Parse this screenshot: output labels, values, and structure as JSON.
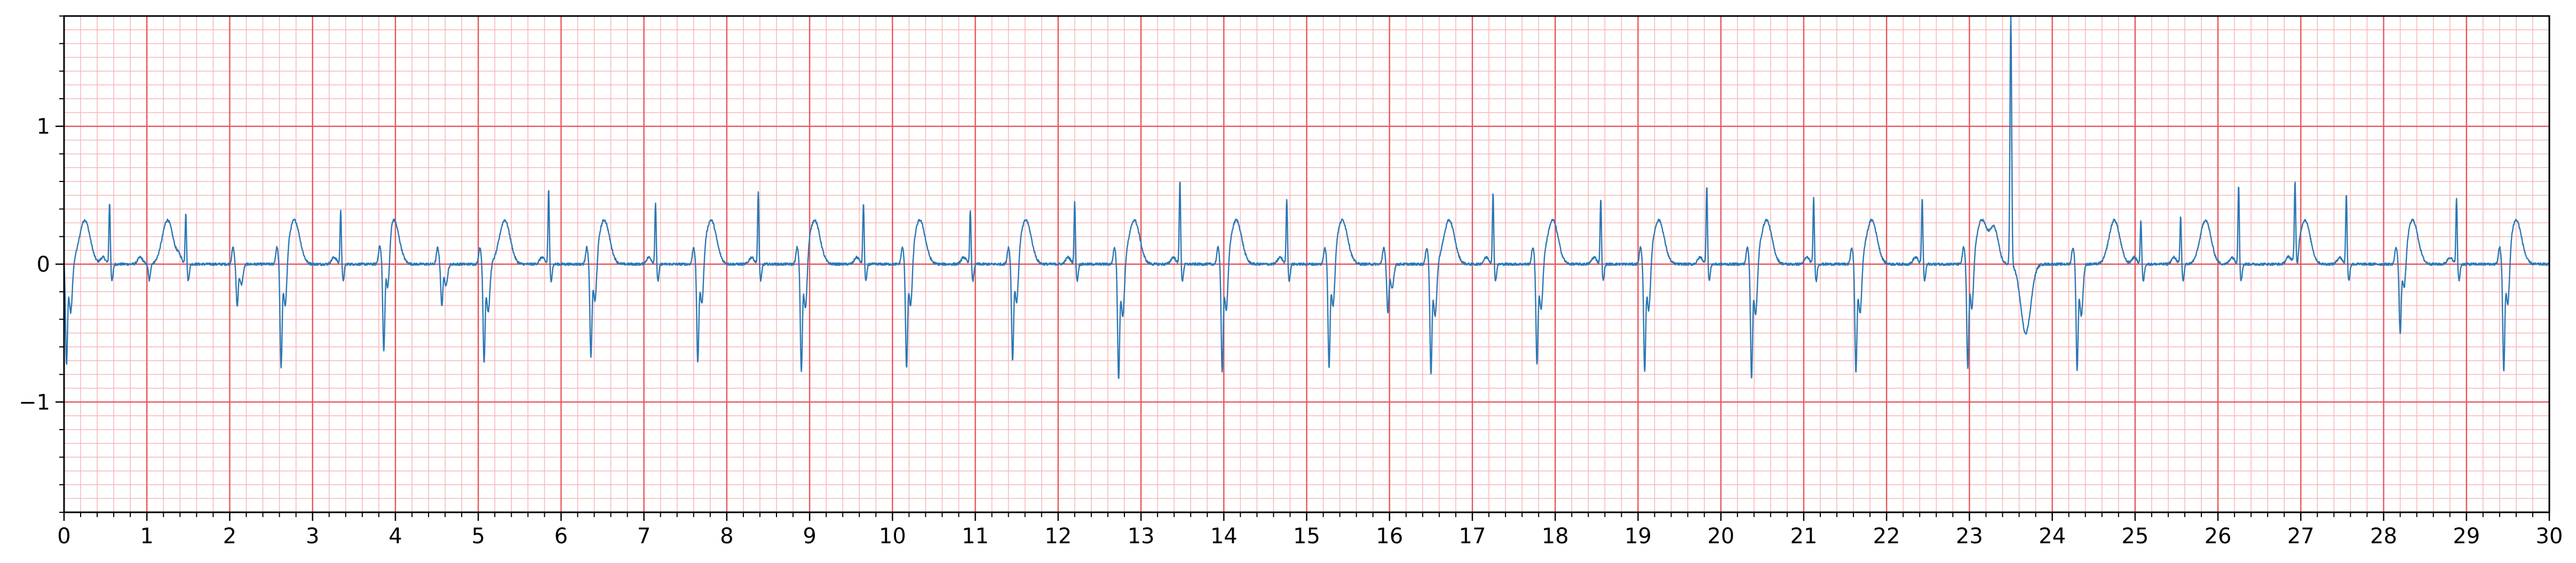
{
  "chart_data": {
    "type": "line",
    "title": "",
    "xlabel": "",
    "ylabel": "",
    "xlim": [
      0,
      30
    ],
    "ylim": [
      -1.8,
      1.8
    ],
    "x_ticks": [
      0,
      1,
      2,
      3,
      4,
      5,
      6,
      7,
      8,
      9,
      10,
      11,
      12,
      13,
      14,
      15,
      16,
      17,
      18,
      19,
      20,
      21,
      22,
      23,
      24,
      25,
      26,
      27,
      28,
      29,
      30
    ],
    "x_tick_labels": [
      "0",
      "1",
      "2",
      "3",
      "4",
      "5",
      "6",
      "7",
      "8",
      "9",
      "10",
      "11",
      "12",
      "13",
      "14",
      "15",
      "16",
      "17",
      "18",
      "19",
      "20",
      "21",
      "22",
      "23",
      "24",
      "25",
      "26",
      "27",
      "28",
      "29",
      "30"
    ],
    "y_ticks": [
      -1,
      0,
      1
    ],
    "y_tick_labels": [
      "−1",
      "0",
      "1"
    ],
    "grid": {
      "major_x_step": 1,
      "major_y_step": 1,
      "minor_x_step": 0.2,
      "minor_y_step": 0.1,
      "major_color": "#e8555a",
      "minor_color": "#f7b6b8"
    },
    "line_color": "#2b78b5",
    "series": [
      {
        "name": "",
        "beats_wide": [
          {
            "t": 0.03,
            "r": -0.72,
            "type": "neg"
          },
          {
            "t": 0.55,
            "r": 0.45,
            "type": "pos"
          },
          {
            "t": 1.0,
            "r": 0.0,
            "type": "pos"
          },
          {
            "t": 1.47,
            "r": 0.38,
            "type": "pos"
          },
          {
            "t": 2.09,
            "r": -0.3,
            "type": "neg"
          },
          {
            "t": 2.62,
            "r": -0.75,
            "type": "neg"
          },
          {
            "t": 3.34,
            "r": 0.4,
            "type": "pos"
          },
          {
            "t": 3.86,
            "r": -0.68,
            "type": "neg"
          },
          {
            "t": 4.56,
            "r": -0.3,
            "type": "neg"
          },
          {
            "t": 5.07,
            "r": -0.7,
            "type": "neg"
          },
          {
            "t": 5.85,
            "r": 0.55,
            "type": "pos"
          },
          {
            "t": 6.36,
            "r": -0.68,
            "type": "neg"
          },
          {
            "t": 7.14,
            "r": 0.45,
            "type": "pos"
          },
          {
            "t": 7.65,
            "r": -0.72,
            "type": "neg"
          },
          {
            "t": 8.38,
            "r": 0.52,
            "type": "pos"
          },
          {
            "t": 8.9,
            "r": -0.78,
            "type": "neg"
          },
          {
            "t": 9.65,
            "r": 0.45,
            "type": "pos"
          },
          {
            "t": 10.17,
            "r": -0.75,
            "type": "neg"
          },
          {
            "t": 10.94,
            "r": 0.4,
            "type": "pos"
          },
          {
            "t": 11.45,
            "r": -0.7,
            "type": "neg"
          },
          {
            "t": 12.2,
            "r": 0.45,
            "type": "pos"
          },
          {
            "t": 12.73,
            "r": -0.82,
            "type": "neg"
          },
          {
            "t": 13.47,
            "r": 0.62,
            "type": "pos"
          },
          {
            "t": 13.98,
            "r": -0.78,
            "type": "neg"
          },
          {
            "t": 14.76,
            "r": 0.48,
            "type": "pos"
          },
          {
            "t": 15.27,
            "r": -0.75,
            "type": "neg"
          },
          {
            "t": 15.98,
            "r": -0.35,
            "type": "neg"
          },
          {
            "t": 16.5,
            "r": -0.78,
            "type": "neg"
          },
          {
            "t": 17.25,
            "r": 0.52,
            "type": "pos"
          },
          {
            "t": 17.78,
            "r": -0.72,
            "type": "neg"
          },
          {
            "t": 18.55,
            "r": 0.48,
            "type": "pos"
          },
          {
            "t": 19.08,
            "r": -0.78,
            "type": "neg"
          },
          {
            "t": 19.83,
            "r": 0.58,
            "type": "pos"
          },
          {
            "t": 20.37,
            "r": -0.82,
            "type": "neg"
          },
          {
            "t": 21.12,
            "r": 0.48,
            "type": "pos"
          },
          {
            "t": 21.63,
            "r": -0.78,
            "type": "neg"
          },
          {
            "t": 22.43,
            "r": 0.48,
            "type": "pos"
          },
          {
            "t": 22.98,
            "r": -0.75,
            "type": "neg"
          },
          {
            "t": 23.5,
            "r": 1.8,
            "type": "big"
          },
          {
            "t": 24.3,
            "r": -0.75,
            "type": "neg"
          },
          {
            "t": 25.07,
            "r": 0.32,
            "type": "pos"
          },
          {
            "t": 25.55,
            "r": 0.35,
            "type": "pos"
          },
          {
            "t": 26.25,
            "r": 0.58,
            "type": "pos"
          },
          {
            "t": 26.93,
            "r": 0.55,
            "type": "pos"
          },
          {
            "t": 27.55,
            "r": 0.52,
            "type": "pos"
          },
          {
            "t": 28.2,
            "r": -0.52,
            "type": "neg"
          },
          {
            "t": 28.88,
            "r": 0.48,
            "type": "pos"
          },
          {
            "t": 29.45,
            "r": -0.78,
            "type": "neg"
          }
        ],
        "t_waves": [
          0.25,
          1.25,
          2.78,
          3.98,
          5.32,
          6.52,
          7.81,
          9.06,
          10.33,
          11.61,
          12.92,
          14.15,
          15.43,
          16.72,
          17.97,
          19.25,
          20.55,
          21.82,
          23.15,
          24.75,
          25.85,
          27.05,
          28.35,
          29.6
        ]
      }
    ]
  }
}
